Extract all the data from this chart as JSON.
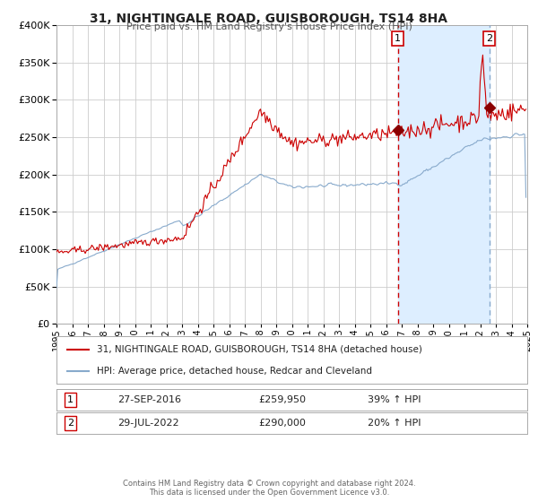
{
  "title": "31, NIGHTINGALE ROAD, GUISBOROUGH, TS14 8HA",
  "subtitle": "Price paid vs. HM Land Registry's House Price Index (HPI)",
  "legend_line1": "31, NIGHTINGALE ROAD, GUISBOROUGH, TS14 8HA (detached house)",
  "legend_line2": "HPI: Average price, detached house, Redcar and Cleveland",
  "annotation1_date": "27-SEP-2016",
  "annotation1_price": "£259,950",
  "annotation1_hpi": "39% ↑ HPI",
  "annotation2_date": "29-JUL-2022",
  "annotation2_price": "£290,000",
  "annotation2_hpi": "20% ↑ HPI",
  "footer1": "Contains HM Land Registry data © Crown copyright and database right 2024.",
  "footer2": "This data is licensed under the Open Government Licence v3.0.",
  "red_color": "#cc0000",
  "blue_color": "#88aacc",
  "vline1_color": "#cc0000",
  "vline2_color": "#88aacc",
  "shade_color": "#ddeeff",
  "background_color": "#ffffff",
  "grid_color": "#cccccc",
  "year_start": 1995,
  "year_end": 2025,
  "ylim_min": 0,
  "ylim_max": 400000,
  "vline1_year": 2016.75,
  "vline2_year": 2022.58,
  "point1_value": 259950,
  "point2_value": 290000
}
